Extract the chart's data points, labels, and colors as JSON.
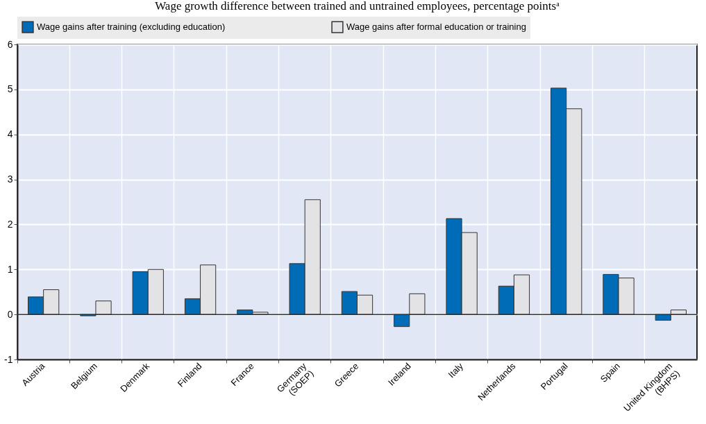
{
  "chart_data": {
    "type": "bar",
    "subtitle": "Wage growth difference between trained and untrained employees, percentage pointsᵃ",
    "categories": [
      "Austria",
      "Belgium",
      "Denmark",
      "Finland",
      "France",
      "Germany\n(SOEP)",
      "Greece",
      "Ireland",
      "Italy",
      "Netherlands",
      "Portugal",
      "Spain",
      "United Kingdom\n(BHPS)"
    ],
    "series": [
      {
        "name": "Wage gains after training (excluding education)",
        "color": "#006bb6",
        "values": [
          0.39,
          -0.03,
          0.95,
          0.35,
          0.1,
          1.13,
          0.51,
          -0.27,
          2.13,
          0.63,
          5.03,
          0.89,
          -0.13
        ]
      },
      {
        "name": "Wage gains after formal education or training",
        "color": "#e3e3e5",
        "values": [
          0.55,
          0.3,
          1.0,
          1.1,
          0.05,
          2.55,
          0.43,
          0.46,
          1.82,
          0.88,
          4.57,
          0.81,
          0.1
        ]
      }
    ],
    "ylim": [
      -1,
      6
    ],
    "yticks": [
      -1,
      0,
      1,
      2,
      3,
      4,
      5,
      6
    ],
    "grid": true,
    "legend": "top"
  }
}
